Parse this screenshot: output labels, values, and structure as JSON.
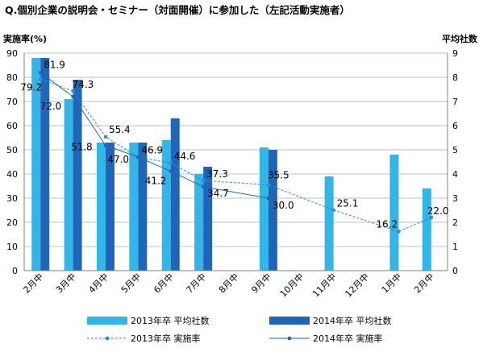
{
  "chart_data": {
    "type": "bar",
    "title": "Q.個別企業の説明会・セミナー（対面開催）に参加した（左記活動実施者）",
    "ylabel": "実施率(%)",
    "y2label": "平均社数",
    "ylim": [
      0,
      90
    ],
    "y2lim": [
      0,
      9
    ],
    "yticks": [
      "0",
      "10",
      "20",
      "30",
      "40",
      "50",
      "60",
      "70",
      "80",
      "90"
    ],
    "y2ticks": [
      "0",
      "1",
      "2",
      "3",
      "4",
      "5",
      "6",
      "7",
      "8",
      "9"
    ],
    "categories": [
      "2月中",
      "3月中",
      "4月中",
      "5月中",
      "6月中",
      "7月中",
      "8月中",
      "9月中",
      "10月中",
      "11月中",
      "12月中",
      "1月中",
      "2月中"
    ],
    "grid": true,
    "legend_position": "bottom",
    "series": [
      {
        "name": "2013年卒 平均社数",
        "kind": "bar",
        "axis": "right",
        "color": "#33b6e6",
        "values": [
          8.8,
          7.1,
          5.3,
          5.3,
          5.4,
          4.0,
          null,
          5.1,
          null,
          3.9,
          null,
          4.8,
          3.4
        ]
      },
      {
        "name": "2014年卒 平均社数",
        "kind": "bar",
        "axis": "right",
        "color": "#1f66b8",
        "values": [
          8.8,
          7.9,
          5.3,
          5.3,
          6.3,
          4.3,
          null,
          5.0,
          null,
          null,
          null,
          null,
          null
        ]
      },
      {
        "name": "2013年卒 実施率",
        "kind": "line",
        "axis": "left",
        "style": "dashed",
        "color": "#2a8fd6",
        "values": [
          79.2,
          74.3,
          55.4,
          46.9,
          44.6,
          37.3,
          null,
          35.5,
          null,
          25.1,
          null,
          16.2,
          22.0
        ],
        "labels": [
          "79.2",
          "74.3",
          "55.4",
          "46.9",
          "44.6",
          "37.3",
          "",
          "35.5",
          "",
          "25.1",
          "",
          "16.2",
          "22.0"
        ]
      },
      {
        "name": "2014年卒 実施率",
        "kind": "line",
        "axis": "left",
        "style": "solid",
        "color": "#1f66b8",
        "values": [
          81.9,
          72.0,
          51.8,
          47.0,
          41.2,
          34.7,
          null,
          30.0,
          null,
          null,
          null,
          null,
          null
        ],
        "labels": [
          "81.9",
          "72.0",
          "51.8",
          "47.0",
          "41.2",
          "34.7",
          "",
          "30.0",
          "",
          "",
          "",
          "",
          ""
        ]
      }
    ]
  }
}
